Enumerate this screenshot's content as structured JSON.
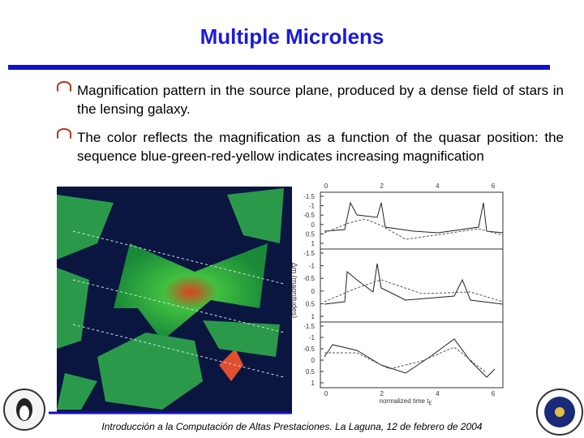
{
  "header": {
    "title": "Multiple Microlens"
  },
  "bullets": [
    "Magnification pattern in the source plane, produced by a dense field of stars in the lensing galaxy.",
    "The color reflects the magnification as a function of the quasar position: the sequence blue-green-red-yellow indicates increasing magnification"
  ],
  "figure": {
    "y_label": "Δm (magnitudes)",
    "x_label": "normalized time t",
    "x_label_sub": "E",
    "x_ticks": [
      "0",
      "2",
      "4",
      "6"
    ],
    "panels": [
      {
        "y_ticks": [
          "-1.5",
          "-1",
          "-0.5",
          "0",
          "0.5",
          "1"
        ]
      },
      {
        "y_ticks": [
          "-1.5",
          "-1",
          "-0.5",
          "0",
          "0.5",
          "1"
        ]
      },
      {
        "y_ticks": [
          "-1.5",
          "-1",
          "-0.5",
          "0",
          "0.5",
          "1"
        ]
      }
    ]
  },
  "footer": "Introducción a la Computación de Altas Prestaciones. La Laguna, 12 de febrero de 2004"
}
